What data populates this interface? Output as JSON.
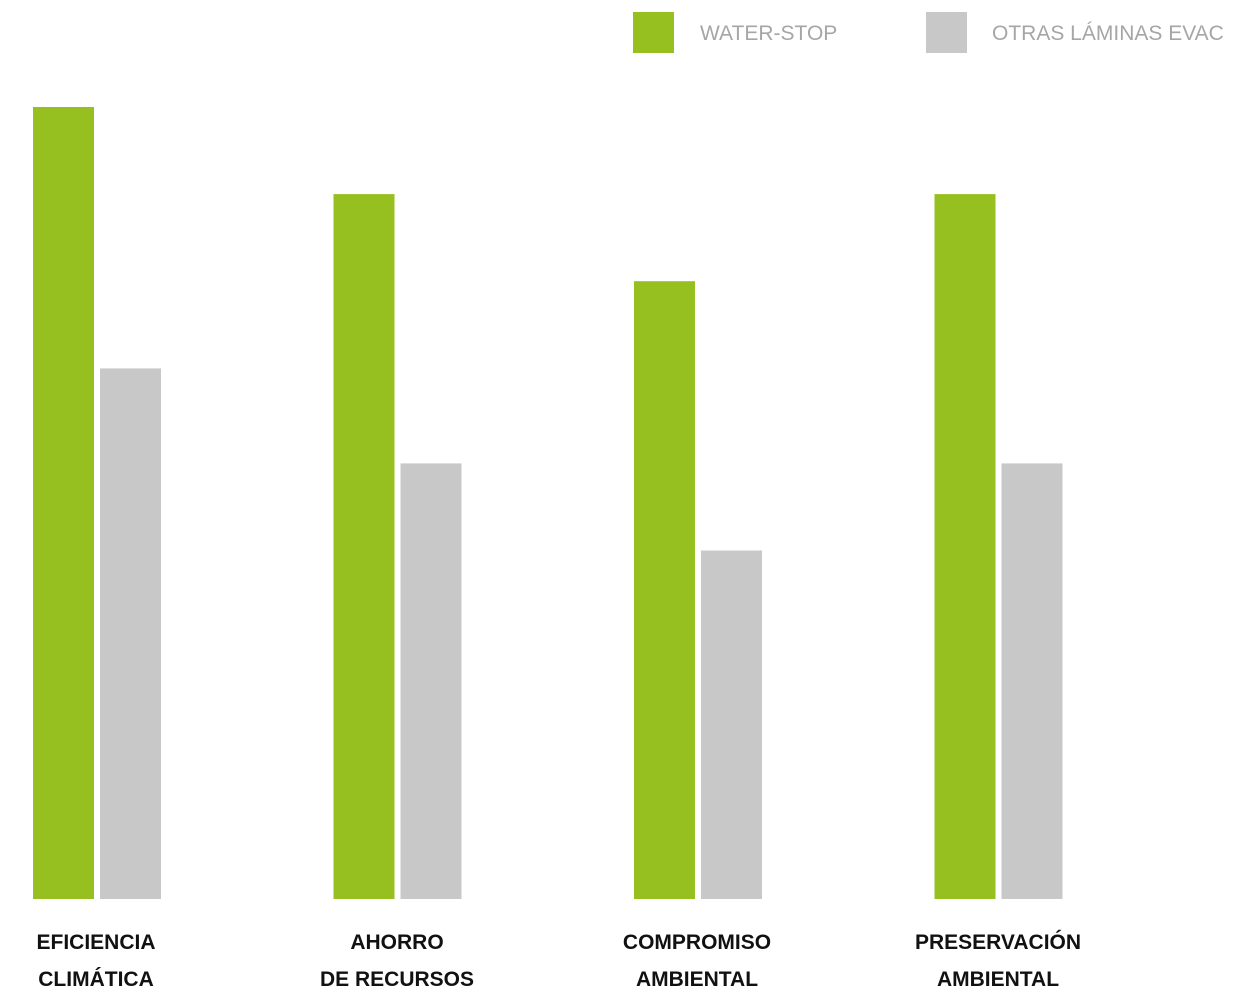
{
  "chart_data": {
    "type": "bar",
    "title": "",
    "xlabel": "",
    "ylabel": "",
    "ylim": [
      0,
      100
    ],
    "grid": false,
    "legend_position": "top-right",
    "categories": [
      [
        "EFICIENCIA",
        "CLIMÁTICA"
      ],
      [
        "AHORRO",
        "DE RECURSOS"
      ],
      [
        "COMPROMISO",
        "AMBIENTAL"
      ],
      [
        "PRESERVACIÓN",
        "AMBIENTAL"
      ]
    ],
    "series": [
      {
        "name": "WATER-STOP",
        "color": "#96bf20",
        "values": [
          100,
          89,
          78,
          89
        ]
      },
      {
        "name": "OTRAS LÁMINAS EVAC",
        "color": "#c8c8c8",
        "values": [
          67,
          55,
          44,
          55
        ]
      }
    ]
  }
}
